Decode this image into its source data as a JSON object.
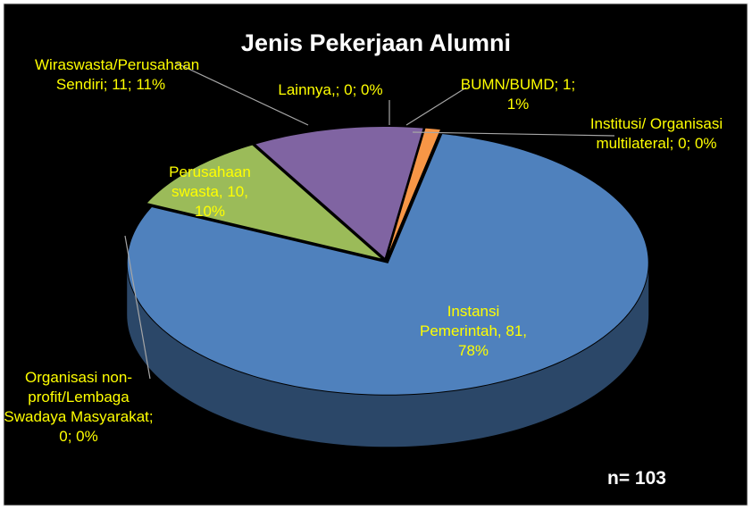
{
  "chart_data": {
    "type": "pie3d",
    "title": "Jenis Pekerjaan Alumni",
    "values": [
      81,
      0,
      10,
      11,
      0,
      1,
      0
    ],
    "value_labels": [
      "Instansi Pemerintah, 81, 78%",
      "Organisasi non-profit/Lembaga Swadaya Masyarakat; 0; 0%",
      "Perusahaan swasta, 10, 10%",
      "Wiraswasta/Perusahaan Sendiri; 11; 11%",
      "Lainnya,; 0; 0%",
      "BUMN/BUMD; 1; 1%",
      "Institusi/ Organisasi multilateral; 0; 0%"
    ],
    "colors": [
      "#4f81bd",
      "#772c2a",
      "#9bbb59",
      "#8064a2",
      "#4bacc6",
      "#f79646",
      "#2c4d75"
    ],
    "annotation": "n= 103"
  }
}
